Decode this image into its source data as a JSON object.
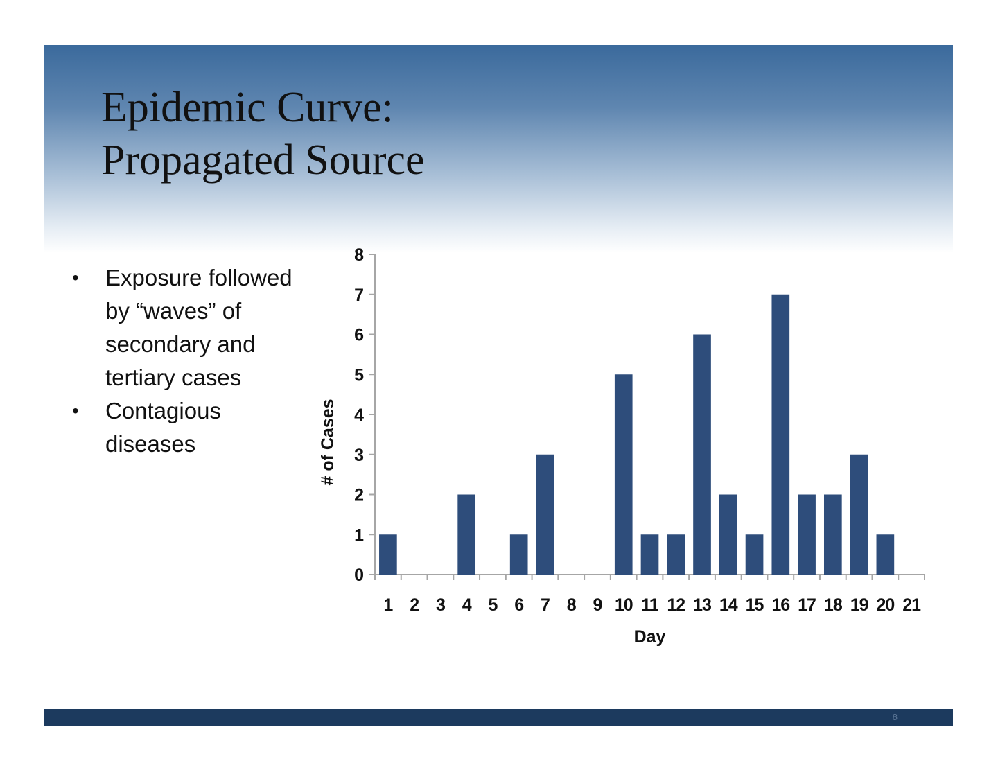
{
  "slide": {
    "title_line1": "Epidemic Curve:",
    "title_line2": "Propagated Source",
    "bullets": [
      "Exposure followed by “waves” of secondary and tertiary cases",
      "Contagious diseases"
    ],
    "bullet_symbol": "•",
    "page_number": "8"
  },
  "colors": {
    "bar": "#2e4d7b",
    "header_gradient_top": "#3b6a9c",
    "footer_bar": "#1c3a5e",
    "axis": "#a6a6a6"
  },
  "chart_data": {
    "type": "bar",
    "categories": [
      "1",
      "2",
      "3",
      "4",
      "5",
      "6",
      "7",
      "8",
      "9",
      "10",
      "11",
      "12",
      "13",
      "14",
      "15",
      "16",
      "17",
      "18",
      "19",
      "20",
      "21"
    ],
    "values": [
      1,
      0,
      0,
      2,
      0,
      1,
      3,
      0,
      0,
      5,
      1,
      1,
      6,
      2,
      1,
      7,
      2,
      2,
      3,
      1,
      0
    ],
    "xlabel": "Day",
    "ylabel": "# of Cases",
    "ylim": [
      0,
      8
    ],
    "yticks": [
      0,
      1,
      2,
      3,
      4,
      5,
      6,
      7,
      8
    ],
    "grid": false,
    "legend": "none"
  }
}
